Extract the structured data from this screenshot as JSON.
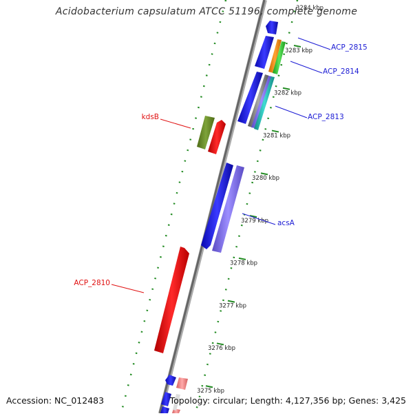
{
  "title": "Acidobacterium capsulatum ATCC 51196, complete genome",
  "accession_text": "Accession: NC_012483",
  "summary_text": "Topology: circular; Length: 4,127,356 bp; Genes: 3,425",
  "ticks": [
    {
      "label": "3284 kbp"
    },
    {
      "label": "3283 kbp"
    },
    {
      "label": "3282 kbp"
    },
    {
      "label": "3281 kbp"
    },
    {
      "label": "3280 kbp"
    },
    {
      "label": "3279 kbp"
    },
    {
      "label": "3278 kbp"
    },
    {
      "label": "3277 kbp"
    },
    {
      "label": "3276 kbp"
    },
    {
      "label": "3275 kbp"
    }
  ],
  "gene_labels": [
    {
      "text": "ACP_2815",
      "color": "#1a1ad4"
    },
    {
      "text": "ACP_2814",
      "color": "#1a1ad4"
    },
    {
      "text": "ACP_2813",
      "color": "#1a1ad4"
    },
    {
      "text": "kdsB",
      "color": "#e01010"
    },
    {
      "text": "acsA",
      "color": "#1a1ad4"
    },
    {
      "text": "ACP_2810",
      "color": "#e01010"
    }
  ],
  "colors": {
    "blue": "#1010ee",
    "red": "#f01010",
    "olive": "#6b8e23",
    "slate": "#7b68ee",
    "orange": "#ff8c00",
    "green": "#32cd32",
    "pink": "#f08080",
    "teal": "#20b2aa",
    "backbone": "#777777",
    "dotted": "#228b22"
  }
}
